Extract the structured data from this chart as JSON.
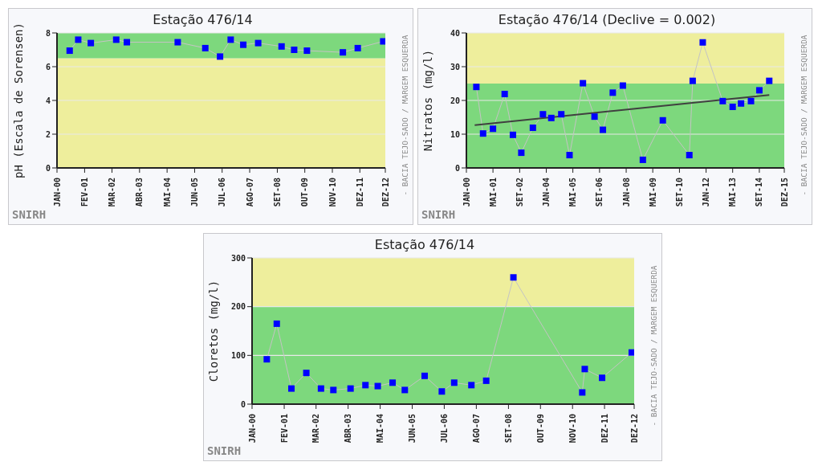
{
  "chart_data": [
    {
      "type": "line",
      "title": "Estação 476/14",
      "ylabel": "pH (Escala de Sorensen)",
      "annotations": [
        "SNIRH",
        "- BACIA TEJO-SADO / MARGEM ESQUERDA"
      ],
      "xlim": [
        "2000-01",
        "2012-12"
      ],
      "xticks": [
        {
          "value": "2000-01",
          "label": "JAN-00"
        },
        {
          "value": "2001-02",
          "label": "FEV-01"
        },
        {
          "value": "2002-03",
          "label": "MAR-02"
        },
        {
          "value": "2003-04",
          "label": "ABR-03"
        },
        {
          "value": "2004-05",
          "label": "MAI-04"
        },
        {
          "value": "2005-06",
          "label": "JUN-05"
        },
        {
          "value": "2006-07",
          "label": "JUL-06"
        },
        {
          "value": "2007-08",
          "label": "AGO-07"
        },
        {
          "value": "2008-09",
          "label": "SET-08"
        },
        {
          "value": "2009-10",
          "label": "OUT-09"
        },
        {
          "value": "2010-11",
          "label": "NOV-10"
        },
        {
          "value": "2011-12",
          "label": "DEZ-11"
        },
        {
          "value": "2012-12",
          "label": "DEZ-12"
        }
      ],
      "ylim": [
        0,
        8
      ],
      "yticks": [
        0,
        2,
        4,
        6,
        8
      ],
      "grid": "y",
      "legend": false,
      "marker": "square",
      "bands": [
        {
          "axis": "y",
          "from": 0,
          "to": 6.5,
          "color": "#eeee9c"
        },
        {
          "axis": "y",
          "from": 6.5,
          "to": 8,
          "color": "#7dd87d"
        }
      ],
      "series": [
        {
          "color": "#0000ff",
          "x": [
            "2000-07",
            "2000-11",
            "2001-05",
            "2002-05",
            "2002-10",
            "2004-10",
            "2005-11",
            "2006-06",
            "2006-11",
            "2007-05",
            "2007-12",
            "2008-11",
            "2009-05",
            "2009-11",
            "2011-04",
            "2011-11",
            "2012-11"
          ],
          "values": [
            6.95,
            7.6,
            7.4,
            7.6,
            7.45,
            7.45,
            7.1,
            6.6,
            7.6,
            7.3,
            7.4,
            7.2,
            7.0,
            6.95,
            6.85,
            7.1,
            7.5
          ]
        }
      ]
    },
    {
      "type": "line",
      "title": "Estação 476/14 (Declive = 0.002)",
      "ylabel": "Nitratos (mg/l)",
      "annotations": [
        "SNIRH",
        "- BACIA TEJO-SADO / MARGEM ESQUERDA"
      ],
      "xlim": [
        "2000-01",
        "2015-12"
      ],
      "xticks": [
        {
          "value": "2000-01",
          "label": "JAN-00"
        },
        {
          "value": "2001-05",
          "label": "MAI-01"
        },
        {
          "value": "2002-09",
          "label": "SET-02"
        },
        {
          "value": "2004-01",
          "label": "JAN-04"
        },
        {
          "value": "2005-05",
          "label": "MAI-05"
        },
        {
          "value": "2006-09",
          "label": "SET-06"
        },
        {
          "value": "2008-01",
          "label": "JAN-08"
        },
        {
          "value": "2009-05",
          "label": "MAI-09"
        },
        {
          "value": "2010-09",
          "label": "SET-10"
        },
        {
          "value": "2012-01",
          "label": "JAN-12"
        },
        {
          "value": "2013-05",
          "label": "MAI-13"
        },
        {
          "value": "2014-09",
          "label": "SET-14"
        },
        {
          "value": "2015-12",
          "label": "DEZ-15"
        }
      ],
      "ylim": [
        0,
        40
      ],
      "yticks": [
        0,
        10,
        20,
        30,
        40
      ],
      "grid": "y",
      "legend": false,
      "marker": "square",
      "bands": [
        {
          "axis": "y",
          "from": 0,
          "to": 25,
          "color": "#7dd87d"
        },
        {
          "axis": "y",
          "from": 25,
          "to": 40,
          "color": "#eeee9c"
        }
      ],
      "series": [
        {
          "color": "#0000ff",
          "x": [
            "2000-07",
            "2000-11",
            "2001-05",
            "2001-12",
            "2002-05",
            "2002-10",
            "2003-05",
            "2003-11",
            "2004-04",
            "2004-10",
            "2005-03",
            "2005-11",
            "2006-06",
            "2006-11",
            "2007-05",
            "2007-11",
            "2008-11",
            "2009-11",
            "2011-03",
            "2011-05",
            "2011-11",
            "2012-11",
            "2013-05",
            "2013-10",
            "2014-04",
            "2014-09",
            "2015-03"
          ],
          "values": [
            24.0,
            10.2,
            11.6,
            21.9,
            9.8,
            4.5,
            11.9,
            15.9,
            14.8,
            15.9,
            3.8,
            25.1,
            15.2,
            11.3,
            22.3,
            24.4,
            2.4,
            14.1,
            3.8,
            25.8,
            37.2,
            19.8,
            18.1,
            19.1,
            19.8,
            23.0,
            25.8
          ]
        },
        {
          "type": "line",
          "marker": "none",
          "color": "#404040",
          "x": [
            "2000-06",
            "2015-03"
          ],
          "values": [
            12.7,
            21.6
          ]
        }
      ]
    },
    {
      "type": "line",
      "title": "Estação 476/14",
      "ylabel": "Cloretos (mg/l)",
      "annotations": [
        "SNIRH",
        "- BACIA TEJO-SADO / MARGEM ESQUERDA"
      ],
      "xlim": [
        "2000-01",
        "2012-12"
      ],
      "xticks": [
        {
          "value": "2000-01",
          "label": "JAN-00"
        },
        {
          "value": "2001-02",
          "label": "FEV-01"
        },
        {
          "value": "2002-03",
          "label": "MAR-02"
        },
        {
          "value": "2003-04",
          "label": "ABR-03"
        },
        {
          "value": "2004-05",
          "label": "MAI-04"
        },
        {
          "value": "2005-06",
          "label": "JUN-05"
        },
        {
          "value": "2006-07",
          "label": "JUL-06"
        },
        {
          "value": "2007-08",
          "label": "AGO-07"
        },
        {
          "value": "2008-09",
          "label": "SET-08"
        },
        {
          "value": "2009-10",
          "label": "OUT-09"
        },
        {
          "value": "2010-11",
          "label": "NOV-10"
        },
        {
          "value": "2011-12",
          "label": "DEZ-11"
        },
        {
          "value": "2012-12",
          "label": "DEZ-12"
        }
      ],
      "ylim": [
        0,
        300
      ],
      "yticks": [
        0,
        100,
        200,
        300
      ],
      "grid": "y",
      "legend": false,
      "marker": "square",
      "bands": [
        {
          "axis": "y",
          "from": 0,
          "to": 200,
          "color": "#7dd87d"
        },
        {
          "axis": "y",
          "from": 200,
          "to": 300,
          "color": "#eeee9c"
        }
      ],
      "series": [
        {
          "color": "#0000ff",
          "x": [
            "2000-07",
            "2000-11",
            "2001-05",
            "2001-11",
            "2002-05",
            "2002-10",
            "2003-05",
            "2003-11",
            "2004-04",
            "2004-10",
            "2005-03",
            "2005-11",
            "2006-06",
            "2006-11",
            "2007-06",
            "2007-12",
            "2008-11",
            "2011-03",
            "2011-04",
            "2011-11",
            "2012-11"
          ],
          "values": [
            92,
            165,
            32,
            64,
            32,
            29,
            32,
            39,
            37,
            44,
            29,
            58,
            26,
            44,
            39,
            48,
            260,
            24,
            72,
            54,
            106
          ]
        }
      ]
    }
  ]
}
